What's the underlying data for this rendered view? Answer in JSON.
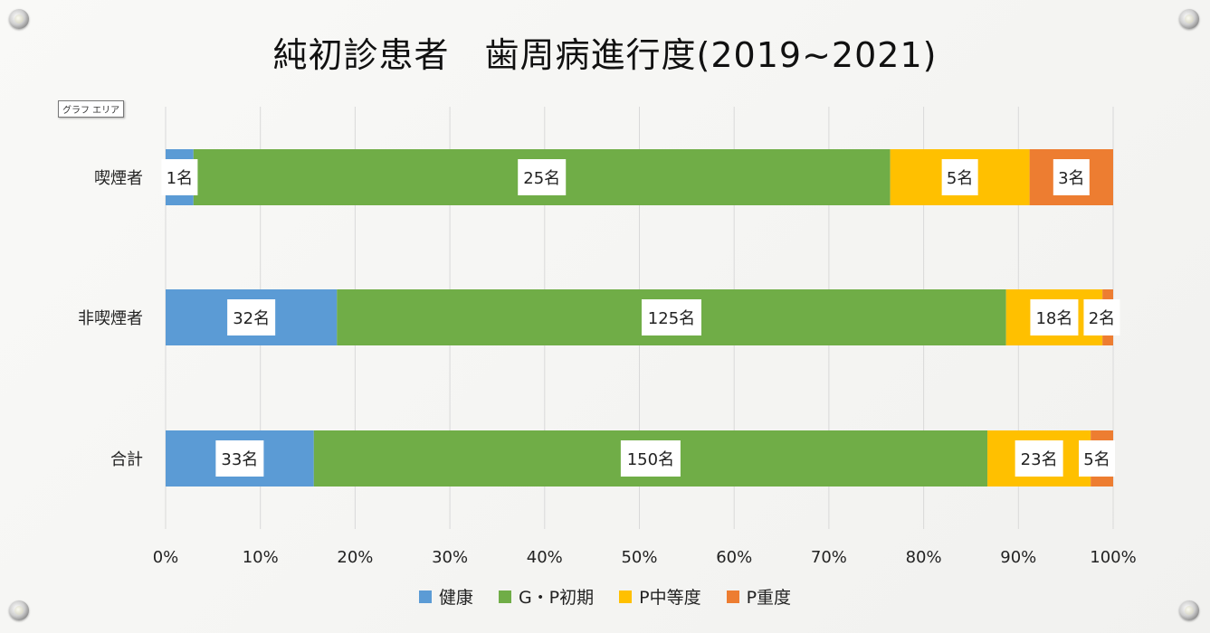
{
  "chart_data": {
    "type": "bar",
    "orientation": "horizontal",
    "stacked": "percent",
    "title": "純初診患者　歯周病進行度(2019~2021)",
    "area_tag": "グラフ エリア",
    "categories": [
      "喫煙者",
      "非喫煙者",
      "合計"
    ],
    "series": [
      {
        "name": "健康",
        "color": "#5b9bd5",
        "values": [
          1,
          32,
          33
        ]
      },
      {
        "name": "G・P初期",
        "color": "#70ad47",
        "values": [
          25,
          125,
          150
        ]
      },
      {
        "name": "P中等度",
        "color": "#ffc000",
        "values": [
          5,
          18,
          23
        ]
      },
      {
        "name": "P重度",
        "color": "#ed7d31",
        "values": [
          3,
          2,
          5
        ]
      }
    ],
    "value_suffix": "名",
    "xlim": [
      0,
      100
    ],
    "xticks": [
      "0%",
      "10%",
      "20%",
      "30%",
      "40%",
      "50%",
      "60%",
      "70%",
      "80%",
      "90%",
      "100%"
    ],
    "grid": true,
    "legend_position": "bottom"
  }
}
